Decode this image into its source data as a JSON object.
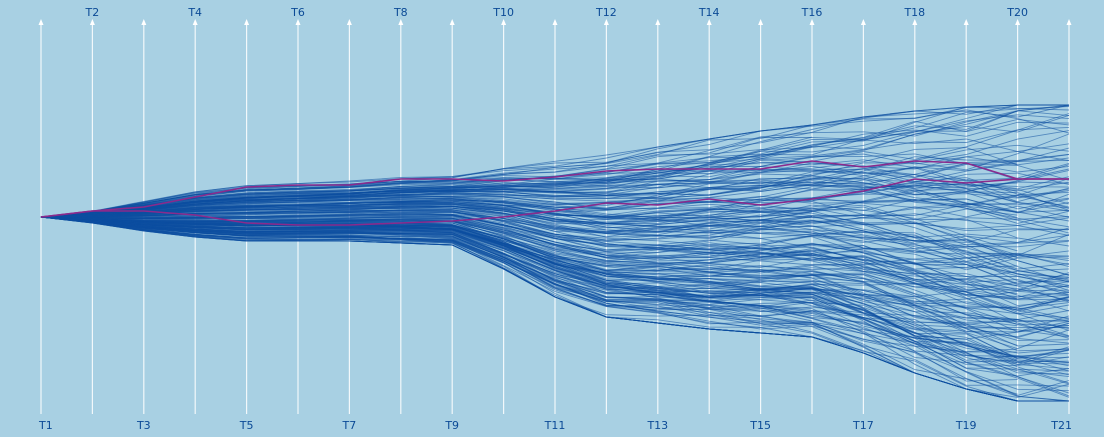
{
  "chart_data": {
    "type": "line",
    "title": "",
    "xlabel": "",
    "ylabel": "",
    "grid": false,
    "legend": "none",
    "categories": [
      "T1",
      "T2",
      "T3",
      "T4",
      "T5",
      "T6",
      "T7",
      "T8",
      "T9",
      "T10",
      "T11",
      "T12",
      "T13",
      "T14",
      "T15",
      "T16",
      "T17",
      "T18",
      "T19",
      "T20",
      "T21"
    ],
    "top_labels": [
      "T2",
      "T4",
      "T6",
      "T8",
      "T10",
      "T12",
      "T14",
      "T16",
      "T18",
      "T20"
    ],
    "bottom_labels": [
      "T1",
      "T3",
      "T5",
      "T7",
      "T9",
      "T11",
      "T13",
      "T15",
      "T17",
      "T19",
      "T21"
    ],
    "ylim": [
      -0.95,
      1.0
    ],
    "line_color": "#0d4fa0",
    "highlight_color": "#8a2a8c",
    "background": "#a8d0e3",
    "axis_color": "#ffffff",
    "series_count": 220,
    "series_envelope": {
      "upper": [
        0,
        0.03,
        0.08,
        0.13,
        0.16,
        0.17,
        0.18,
        0.2,
        0.21,
        0.25,
        0.28,
        0.31,
        0.35,
        0.39,
        0.43,
        0.46,
        0.5,
        0.53,
        0.55,
        0.56,
        0.56
      ],
      "lower": [
        0,
        -0.03,
        -0.07,
        -0.1,
        -0.12,
        -0.12,
        -0.12,
        -0.13,
        -0.14,
        -0.26,
        -0.4,
        -0.5,
        -0.53,
        -0.56,
        -0.58,
        -0.6,
        -0.68,
        -0.78,
        -0.86,
        -0.92,
        -0.92
      ]
    },
    "highlight_series": [
      {
        "values": [
          0,
          0.03,
          0.05,
          0.1,
          0.15,
          0.16,
          0.16,
          0.19,
          0.19,
          0.18,
          0.2,
          0.23,
          0.24,
          0.24,
          0.24,
          0.28,
          0.25,
          0.28,
          0.27,
          0.19,
          0.19
        ]
      },
      {
        "values": [
          0,
          0.03,
          0.03,
          0.01,
          -0.03,
          -0.04,
          -0.04,
          -0.03,
          -0.02,
          0.0,
          0.03,
          0.07,
          0.06,
          0.09,
          0.06,
          0.09,
          0.13,
          0.19,
          0.17,
          0.19,
          0.19
        ]
      }
    ]
  }
}
